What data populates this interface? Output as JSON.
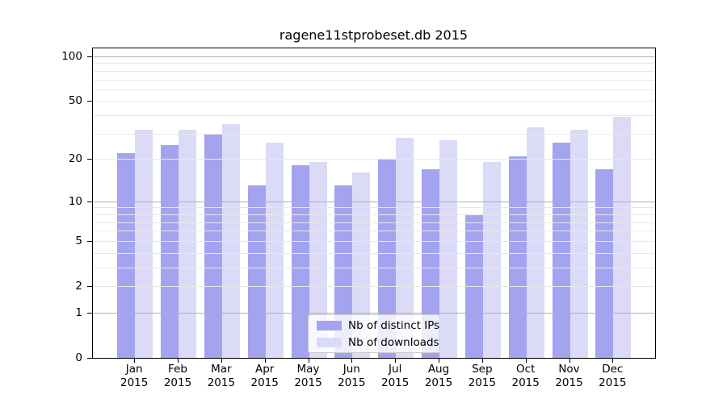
{
  "title": "ragene11stprobeset.db 2015",
  "colors": {
    "ips": "#a3a3f0",
    "downloads": "#dbdbf8",
    "grid_major": "#b0b0b0",
    "grid_minor": "#e8e8e8",
    "axis": "#000000",
    "legend_border": "#cccccc"
  },
  "legend": {
    "items": [
      {
        "label": "Nb of distinct IPs",
        "color_key": "ips"
      },
      {
        "label": "Nb of downloads",
        "color_key": "downloads"
      }
    ]
  },
  "chart_data": {
    "type": "bar",
    "title": "ragene11stprobeset.db 2015",
    "categories": [
      "Jan",
      "Feb",
      "Mar",
      "Apr",
      "May",
      "Jun",
      "Jul",
      "Aug",
      "Sep",
      "Oct",
      "Nov",
      "Dec"
    ],
    "year_label": "2015",
    "series": [
      {
        "name": "Nb of distinct IPs",
        "values": [
          22,
          25,
          30,
          13,
          18,
          13,
          20,
          17,
          8,
          21,
          26,
          17
        ]
      },
      {
        "name": "Nb of downloads",
        "values": [
          32,
          32,
          35,
          26,
          19,
          16,
          28,
          27,
          19,
          33,
          32,
          39
        ]
      }
    ],
    "xlabel": "",
    "ylabel": "",
    "yscale": "log1p",
    "ylim": [
      0,
      117
    ],
    "yticks": [
      0,
      1,
      2,
      5,
      10,
      20,
      50,
      100
    ],
    "major_gridlines": [
      1,
      10,
      100
    ],
    "minor_gridlines": [
      2,
      3,
      4,
      5,
      6,
      7,
      8,
      9,
      20,
      30,
      40,
      50,
      60,
      70,
      80,
      90
    ],
    "grid": true,
    "legend_position": "lower-center"
  }
}
